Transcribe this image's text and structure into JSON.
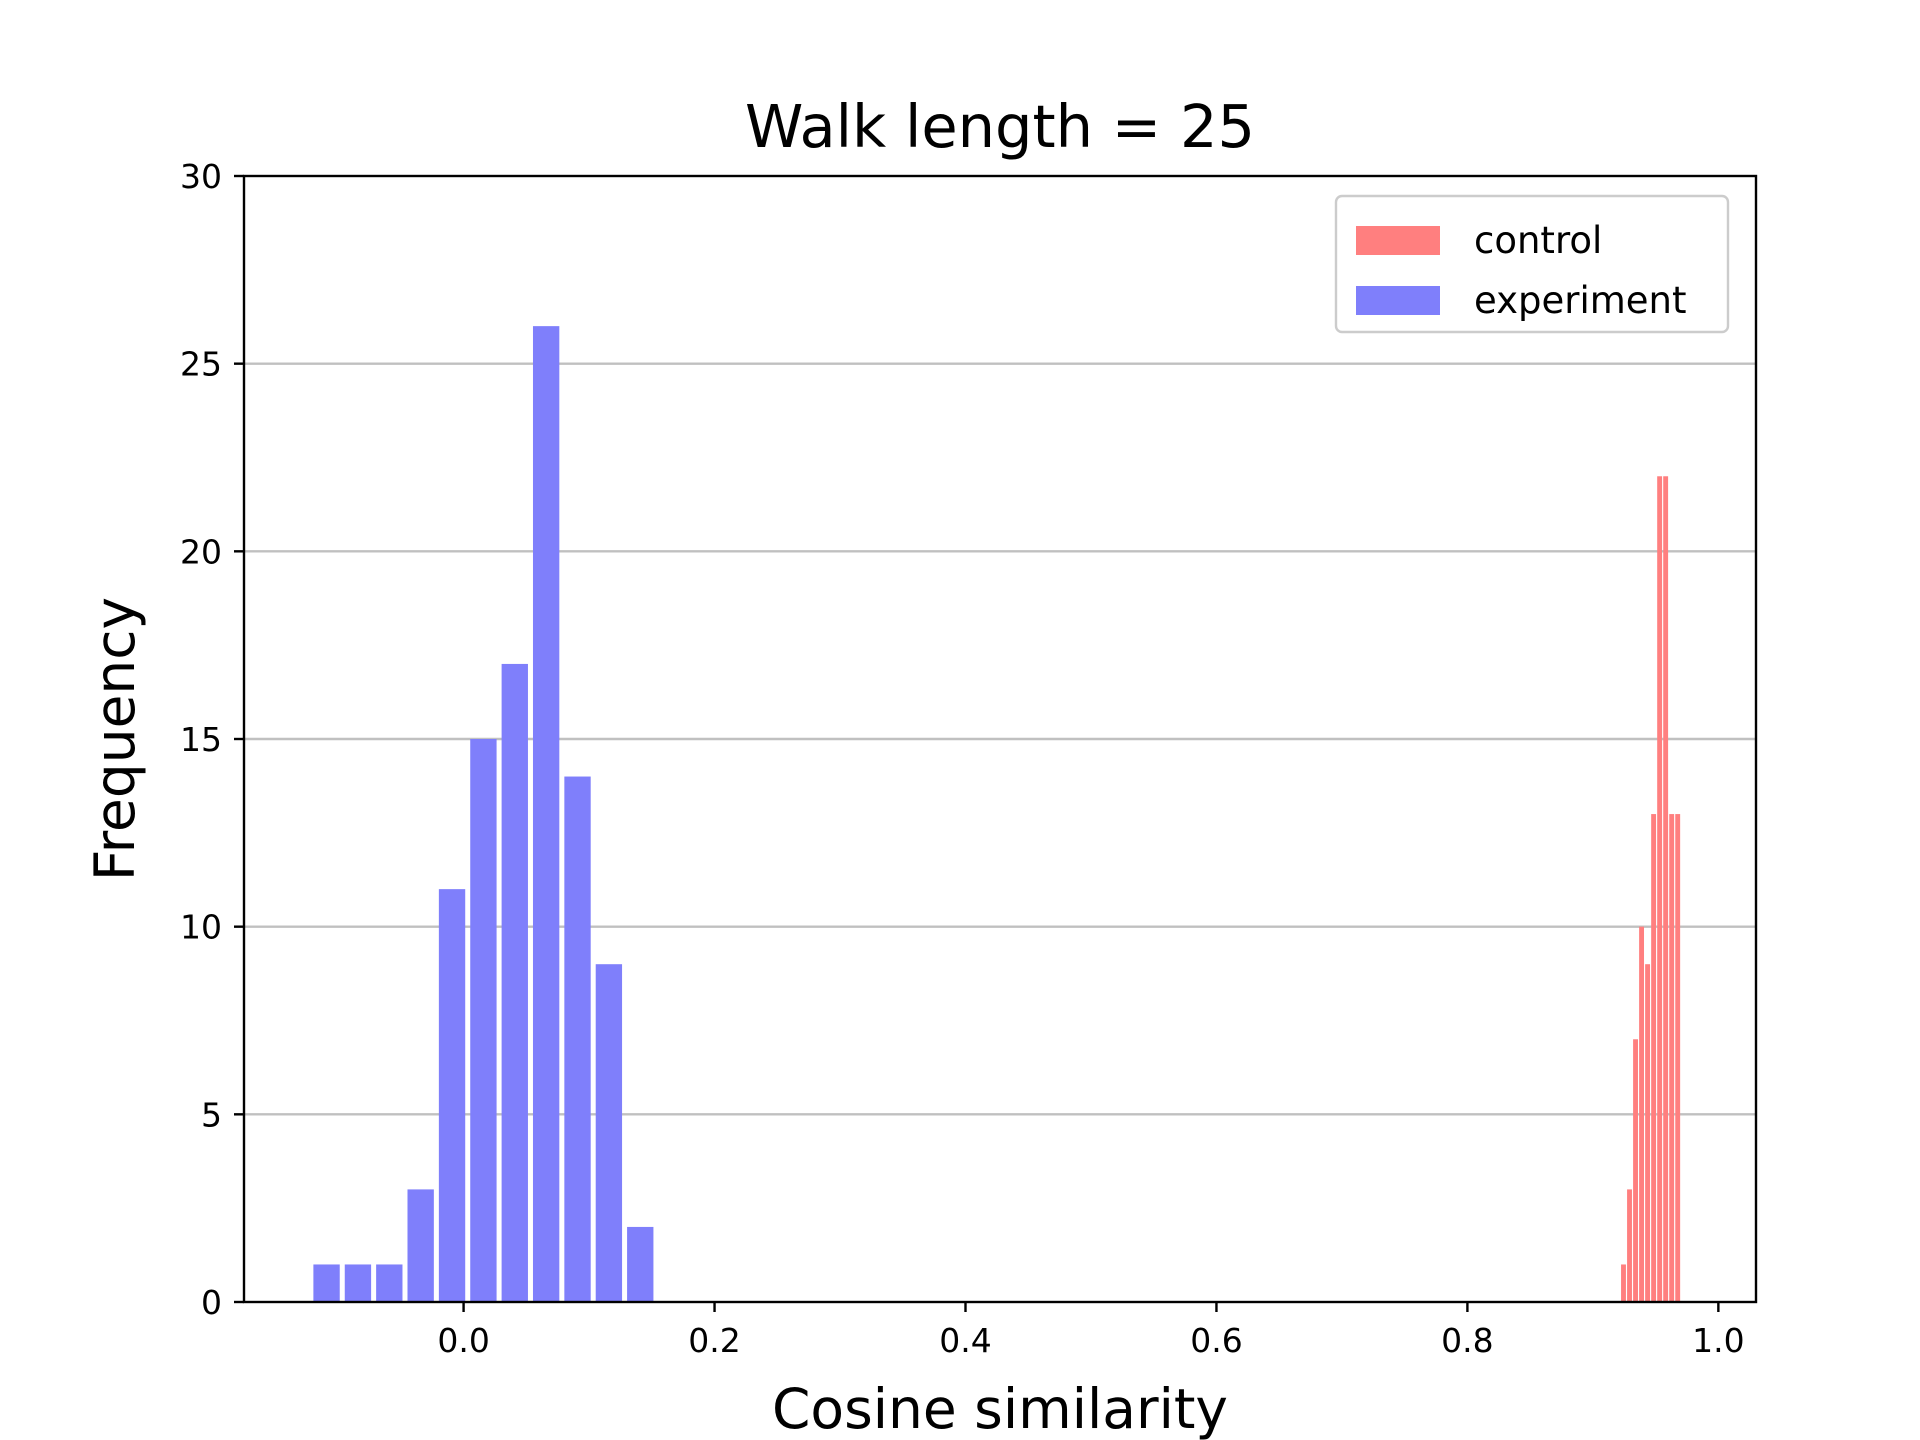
{
  "chart_data": {
    "type": "bar",
    "title": "Walk length = 25",
    "xlabel": "Cosine similarity",
    "ylabel": "Frequency",
    "xlim": [
      -0.175,
      1.03
    ],
    "ylim": [
      0,
      30
    ],
    "xticks": [
      0.0,
      0.2,
      0.4,
      0.6,
      0.8,
      1.0
    ],
    "xtick_labels": [
      "0.0",
      "0.2",
      "0.4",
      "0.6",
      "0.8",
      "1.0"
    ],
    "yticks": [
      0,
      5,
      10,
      15,
      20,
      25,
      30
    ],
    "ytick_labels": [
      "0",
      "5",
      "10",
      "15",
      "20",
      "25",
      "30"
    ],
    "grid": "y",
    "legend_position": "top-right",
    "series": [
      {
        "name": "control",
        "color": "#ff7f7f",
        "bar_width": 0.0039,
        "x": [
          0.9244,
          0.9292,
          0.934,
          0.9388,
          0.9436,
          0.9484,
          0.9532,
          0.958,
          0.9628,
          0.9676
        ],
        "values": [
          1,
          3,
          7,
          10,
          9,
          13,
          22,
          22,
          13,
          13
        ]
      },
      {
        "name": "experiment",
        "color": "#7f7ffb",
        "bar_width": 0.021,
        "x": [
          -0.1092,
          -0.0842,
          -0.0592,
          -0.0342,
          -0.0092,
          0.0158,
          0.0408,
          0.0658,
          0.0908,
          0.1158,
          0.1408
        ],
        "values": [
          1,
          1,
          1,
          3,
          11,
          15,
          17,
          26,
          14,
          9,
          2
        ]
      }
    ]
  }
}
